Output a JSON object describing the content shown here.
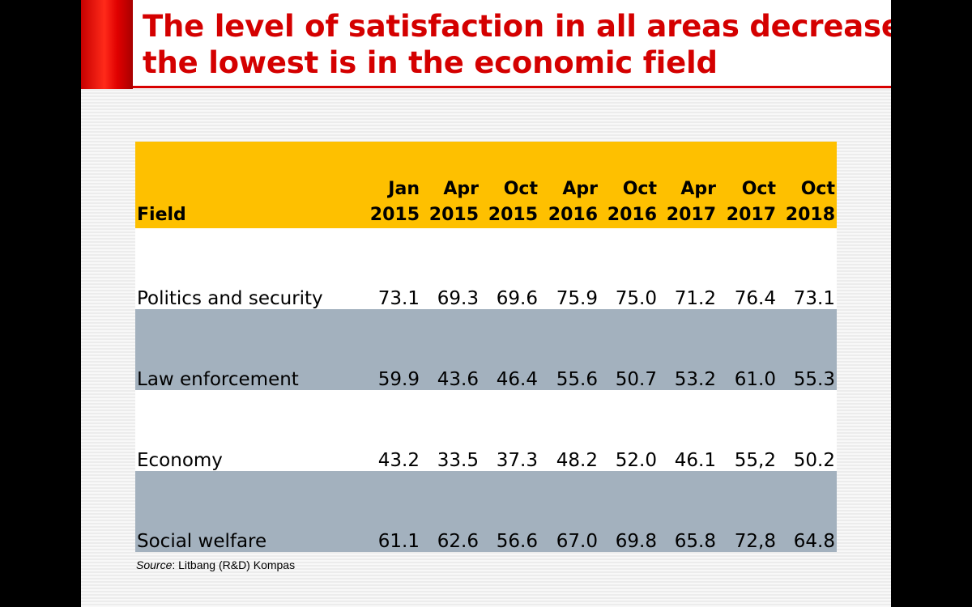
{
  "slide": {
    "title_line1": "The level of satisfaction in all areas decreased,",
    "title_line2": "the lowest is in the economic field",
    "source_label": "Source",
    "source_text": ": Litbang (R&D) Kompas"
  },
  "colors": {
    "title_red": "#d40000",
    "header_yellow": "#fec000",
    "row_gray_blue": "#a3b1be"
  },
  "chart_data": {
    "type": "table",
    "title": "The level of satisfaction in all areas decreased, the lowest is in the economic field",
    "field_header": "Field",
    "columns": [
      {
        "month": "Jan",
        "year": "2015"
      },
      {
        "month": "Apr",
        "year": "2015"
      },
      {
        "month": "Oct",
        "year": "2015"
      },
      {
        "month": "Apr",
        "year": "2016"
      },
      {
        "month": "Oct",
        "year": "2016"
      },
      {
        "month": "Apr",
        "year": "2017"
      },
      {
        "month": "Oct",
        "year": "2017"
      },
      {
        "month": "Oct",
        "year": "2018"
      }
    ],
    "rows": [
      {
        "field": "Politics and security",
        "values": [
          "73.1",
          "69.3",
          "69.6",
          "75.9",
          "75.0",
          "71.2",
          "76.4",
          "73.1"
        ]
      },
      {
        "field": "Law enforcement",
        "values": [
          "59.9",
          "43.6",
          "46.4",
          "55.6",
          "50.7",
          "53.2",
          "61.0",
          "55.3"
        ]
      },
      {
        "field": "Economy",
        "values": [
          "43.2",
          "33.5",
          "37.3",
          "48.2",
          "52.0",
          "46.1",
          "55,2",
          "50.2"
        ]
      },
      {
        "field": "Social welfare",
        "values": [
          "61.1",
          "62.6",
          "56.6",
          "67.0",
          "69.8",
          "65.8",
          "72,8",
          "64.8"
        ]
      }
    ],
    "source": "Source: Litbang (R&D) Kompas"
  }
}
